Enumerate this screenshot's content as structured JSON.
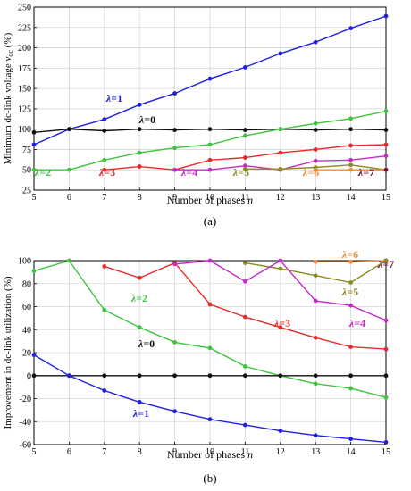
{
  "chart_data": [
    {
      "type": "line",
      "panel_label": "(a)",
      "ylabel": "Minimum dc-link voltage vₑc (%)",
      "ylabel_parts": [
        "Minimum dc-link voltage ",
        "v",
        "dc",
        " (%)"
      ],
      "xlabel": "Number of phases n",
      "xlabel_parts": [
        "Number of phases ",
        "n"
      ],
      "xlim": [
        5,
        15
      ],
      "ylim": [
        25,
        250
      ],
      "xticks": [
        5,
        6,
        7,
        8,
        9,
        10,
        11,
        12,
        13,
        14,
        15
      ],
      "yticks": [
        25,
        50,
        75,
        100,
        125,
        150,
        175,
        200,
        225,
        250
      ],
      "grid": true,
      "series": [
        {
          "name": "λ=1",
          "label_parts": [
            "λ",
            "=1"
          ],
          "color": "#1f1fe6",
          "x": [
            5,
            6,
            7,
            8,
            9,
            10,
            11,
            12,
            13,
            14,
            15
          ],
          "y": [
            81,
            100,
            112,
            130,
            144,
            162,
            176,
            193,
            207,
            224,
            239
          ]
        },
        {
          "name": "λ=0",
          "label_parts": [
            "λ",
            "=0"
          ],
          "color": "#111111",
          "x": [
            5,
            6,
            7,
            8,
            9,
            10,
            11,
            12,
            13,
            14,
            15
          ],
          "y": [
            96,
            100,
            98,
            100,
            99,
            100,
            99,
            100,
            99,
            100,
            99
          ]
        },
        {
          "name": "λ=2",
          "label_parts": [
            "λ",
            "=2"
          ],
          "color": "#3ec43e",
          "x": [
            5,
            6,
            7,
            8,
            9,
            10,
            11,
            12,
            13,
            14,
            15
          ],
          "y": [
            50,
            50,
            62,
            71,
            77,
            81,
            92,
            100,
            107,
            113,
            122
          ]
        },
        {
          "name": "λ=3",
          "label_parts": [
            "λ",
            "=3"
          ],
          "color": "#e62a2a",
          "x": [
            7,
            8,
            9,
            10,
            11,
            12,
            13,
            14,
            15
          ],
          "y": [
            50,
            54,
            50,
            62,
            65,
            71,
            75,
            80,
            81
          ]
        },
        {
          "name": "λ=4",
          "label_parts": [
            "λ",
            "=4"
          ],
          "color": "#c829c8",
          "x": [
            9,
            10,
            11,
            12,
            13,
            14,
            15
          ],
          "y": [
            50,
            50,
            55,
            50,
            61,
            62,
            67
          ]
        },
        {
          "name": "λ=5",
          "label_parts": [
            "λ",
            "=5"
          ],
          "color": "#8c8c1e",
          "x": [
            11,
            12,
            13,
            14,
            15
          ],
          "y": [
            51,
            51,
            53,
            56,
            50
          ]
        },
        {
          "name": "λ=6",
          "label_parts": [
            "λ",
            "=6"
          ],
          "color": "#f08a3c",
          "x": [
            13,
            14,
            15
          ],
          "y": [
            50,
            50,
            50
          ]
        },
        {
          "name": "λ=7",
          "label_parts": [
            "λ",
            "=7"
          ],
          "color": "#7a1040",
          "x": [
            15
          ],
          "y": [
            50
          ]
        }
      ]
    },
    {
      "type": "line",
      "panel_label": "(b)",
      "ylabel": "Improvement in dc-link utilization (%)",
      "ylabel_parts": [
        "Improvement in dc-link utilization (%)"
      ],
      "xlabel": "Number of phases n",
      "xlabel_parts": [
        "Number of phases ",
        "n"
      ],
      "xlim": [
        5,
        15
      ],
      "ylim": [
        -60,
        100
      ],
      "xticks": [
        5,
        6,
        7,
        8,
        9,
        10,
        11,
        12,
        13,
        14,
        15
      ],
      "yticks": [
        -60,
        -40,
        -20,
        0,
        20,
        40,
        60,
        80,
        100
      ],
      "grid": true,
      "series": [
        {
          "name": "λ=6",
          "label_parts": [
            "λ",
            "=6"
          ],
          "color": "#f08a3c",
          "x": [
            13,
            14,
            15
          ],
          "y": [
            99,
            99,
            100
          ]
        },
        {
          "name": "λ=7",
          "label_parts": [
            "λ",
            "=7"
          ],
          "color": "#7a1040",
          "x": [
            15
          ],
          "y": [
            100
          ]
        },
        {
          "name": "λ=5",
          "label_parts": [
            "λ",
            "=5"
          ],
          "color": "#8c8c1e",
          "x": [
            11,
            12,
            13,
            14,
            15
          ],
          "y": [
            98,
            93,
            87,
            81,
            100
          ]
        },
        {
          "name": "λ=2",
          "label_parts": [
            "λ",
            "=2"
          ],
          "color": "#3ec43e",
          "x": [
            5,
            6,
            7,
            8,
            9,
            10,
            11,
            12,
            13,
            14,
            15
          ],
          "y": [
            91,
            100,
            57,
            42,
            29,
            24,
            8,
            0,
            -7,
            -11,
            -19
          ]
        },
        {
          "name": "λ=3",
          "label_parts": [
            "λ",
            "=3"
          ],
          "color": "#e62a2a",
          "x": [
            7,
            8,
            9,
            10,
            11,
            12,
            13,
            14,
            15
          ],
          "y": [
            95,
            85,
            98,
            62,
            51,
            42,
            33,
            25,
            23
          ]
        },
        {
          "name": "λ=4",
          "label_parts": [
            "λ",
            "=4"
          ],
          "color": "#c829c8",
          "x": [
            9,
            10,
            11,
            12,
            13,
            14,
            15
          ],
          "y": [
            97,
            100,
            82,
            100,
            65,
            61,
            48
          ]
        },
        {
          "name": "λ=0",
          "label_parts": [
            "λ",
            "=0"
          ],
          "color": "#111111",
          "x": [
            5,
            6,
            7,
            8,
            9,
            10,
            11,
            12,
            13,
            14,
            15
          ],
          "y": [
            0,
            0,
            0,
            0,
            0,
            0,
            0,
            0,
            0,
            0,
            0
          ]
        },
        {
          "name": "λ=1",
          "label_parts": [
            "λ",
            "=1"
          ],
          "color": "#1f1fe6",
          "x": [
            5,
            6,
            7,
            8,
            9,
            10,
            11,
            12,
            13,
            14,
            15
          ],
          "y": [
            18,
            0,
            -13,
            -23,
            -31,
            -38,
            -43,
            -48,
            -52,
            -55,
            -58
          ]
        }
      ]
    }
  ]
}
